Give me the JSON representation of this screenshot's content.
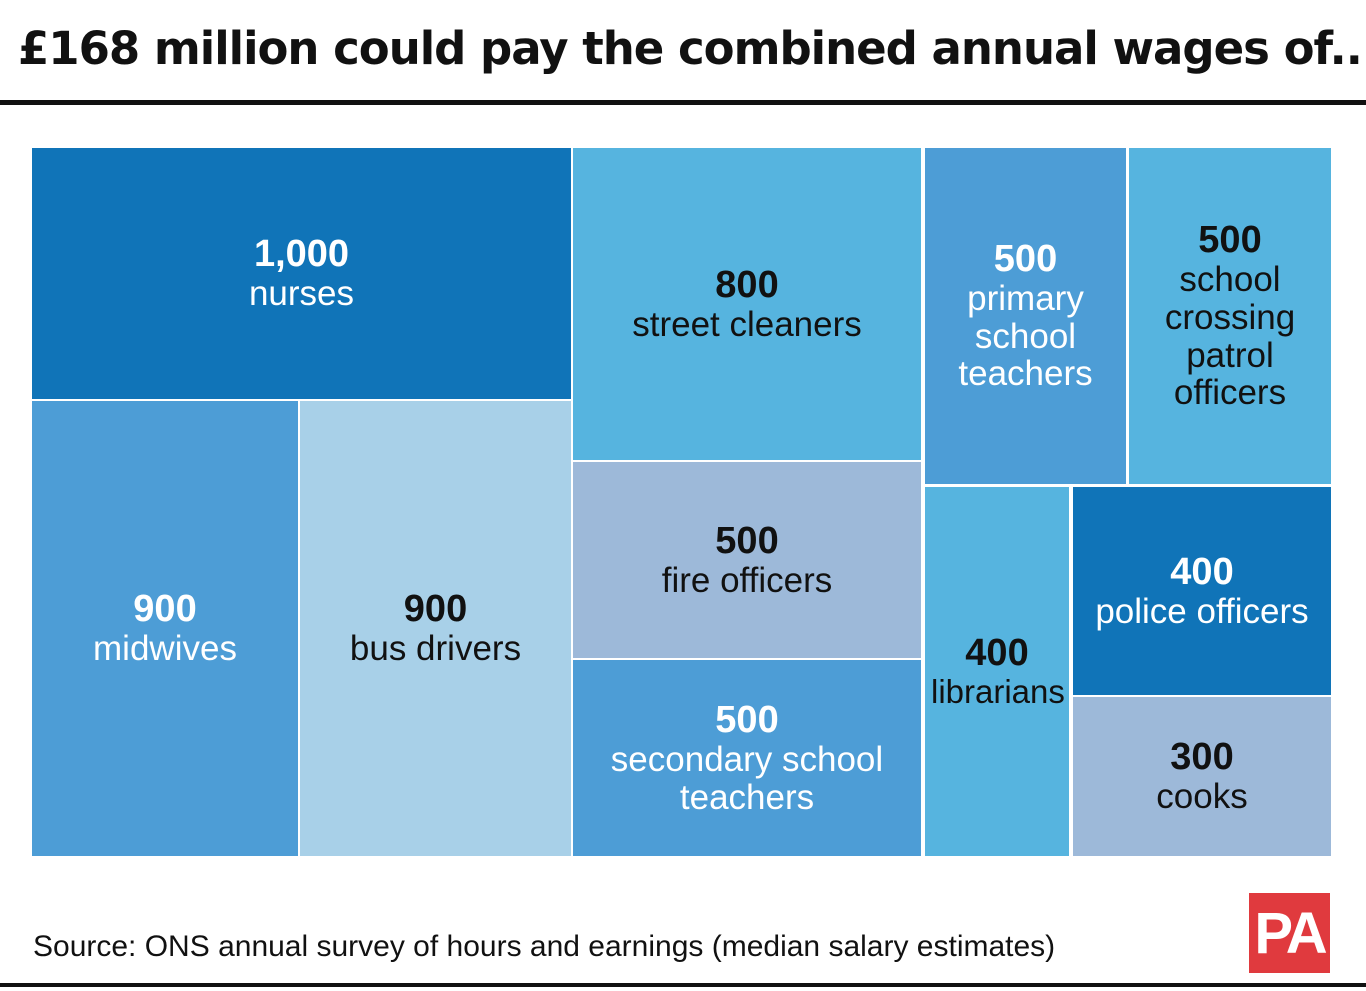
{
  "chart_data": {
    "type": "treemap",
    "title": "£168 million could pay the combined annual wages of...",
    "categories": [
      "nurses",
      "midwives",
      "bus drivers",
      "street cleaners",
      "fire officers",
      "secondary school teachers",
      "primary school teachers",
      "school crossing patrol officers",
      "librarians",
      "police officers",
      "cooks"
    ],
    "values": [
      1000,
      900,
      900,
      800,
      500,
      500,
      500,
      500,
      400,
      400,
      300
    ],
    "value_labels": [
      "1,000",
      "900",
      "900",
      "800",
      "500",
      "500",
      "500",
      "500",
      "400",
      "400",
      "300"
    ],
    "colors": [
      "#1074b8",
      "#4d9dd6",
      "#a8d0e8",
      "#56b4df",
      "#9db9d9",
      "#4d9dd6",
      "#4d9dd6",
      "#56b4df",
      "#56b4df",
      "#1074b8",
      "#9db9d9"
    ],
    "source": "Source: ONS annual survey of hours and earnings (median salary estimates)"
  },
  "logo": "PA"
}
